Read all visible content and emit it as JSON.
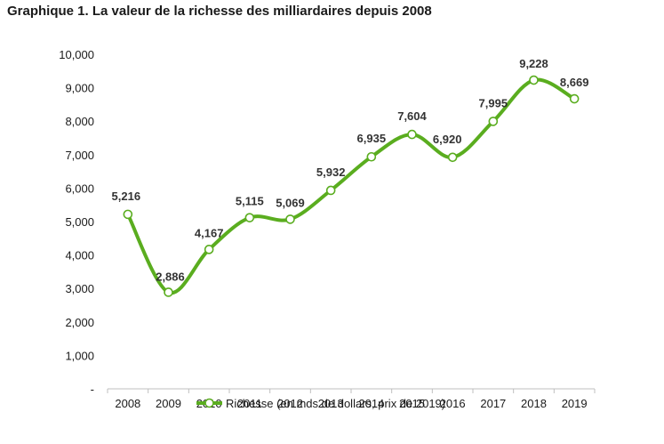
{
  "chart_data": {
    "type": "line",
    "title": "Graphique 1. La valeur de la richesse des milliardaires depuis 2008",
    "xlabel": "",
    "ylabel": "",
    "categories": [
      "2008",
      "2009",
      "2010",
      "2011",
      "2012",
      "2013",
      "2014",
      "2015",
      "2016",
      "2017",
      "2018",
      "2019"
    ],
    "series": [
      {
        "name": "Richesse (en mds de dollars, prix de 2019)",
        "values": [
          5216,
          2886,
          4167,
          5115,
          5069,
          5932,
          6935,
          7604,
          6920,
          7995,
          9228,
          8669
        ],
        "labels": [
          "5,216",
          "2,886",
          "4,167",
          "5,115",
          "5,069",
          "5,932",
          "6,935",
          "7,604",
          "6,920",
          "7,995",
          "9,228",
          "8,669"
        ],
        "color": "#5aad1f"
      }
    ],
    "ylim": [
      0,
      10000
    ],
    "yticks": [
      0,
      1000,
      2000,
      3000,
      4000,
      5000,
      6000,
      7000,
      8000,
      9000,
      10000
    ],
    "ytick_labels": [
      "-",
      "1,000",
      "2,000",
      "3,000",
      "4,000",
      "5,000",
      "6,000",
      "7,000",
      "8,000",
      "9,000",
      "10,000"
    ],
    "grid": false,
    "legend_position": "bottom",
    "smooth": true
  }
}
